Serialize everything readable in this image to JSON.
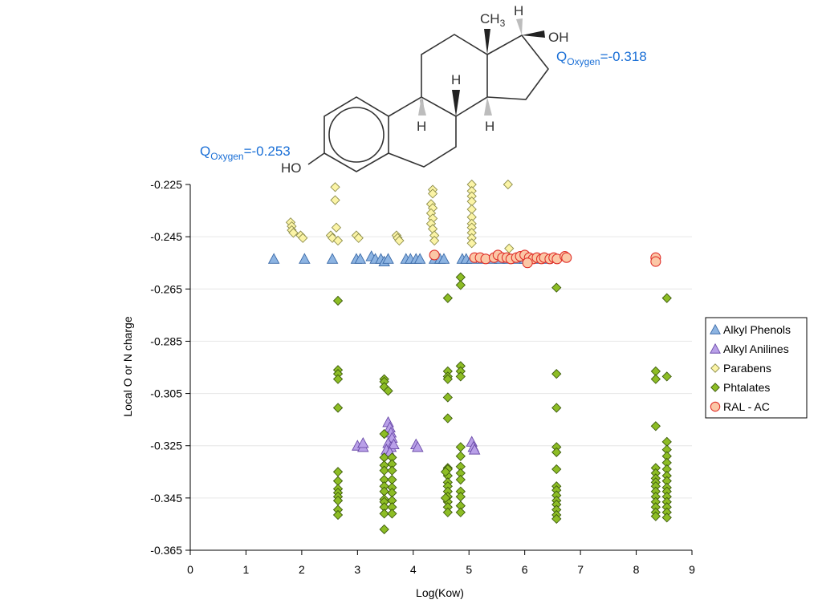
{
  "chart_data": {
    "type": "scatter",
    "title": "",
    "xlabel": "Log(Kow)",
    "ylabel": "Local O or N charge",
    "xlim": [
      0,
      9
    ],
    "ylim": [
      -0.365,
      -0.225
    ],
    "xticks": [
      "0",
      "1",
      "2",
      "3",
      "4",
      "5",
      "6",
      "7",
      "8",
      "9"
    ],
    "yticks": [
      "-0.225",
      "-0.245",
      "-0.265",
      "-0.285",
      "-0.305",
      "-0.325",
      "-0.345",
      "-0.365"
    ],
    "grid": "horizontal",
    "legend_position": "right",
    "series": [
      {
        "name": "Alkyl Phenols",
        "marker": "triangle",
        "color": "#8db4e2",
        "points": [
          [
            1.5,
            -0.2535
          ],
          [
            2.05,
            -0.2535
          ],
          [
            2.55,
            -0.2535
          ],
          [
            2.98,
            -0.2535
          ],
          [
            3.05,
            -0.2535
          ],
          [
            3.25,
            -0.2525
          ],
          [
            3.32,
            -0.2535
          ],
          [
            3.42,
            -0.2535
          ],
          [
            3.48,
            -0.2545
          ],
          [
            3.55,
            -0.2535
          ],
          [
            3.87,
            -0.2535
          ],
          [
            3.95,
            -0.2535
          ],
          [
            4.05,
            -0.2535
          ],
          [
            4.12,
            -0.2535
          ],
          [
            4.38,
            -0.2535
          ],
          [
            4.48,
            -0.2535
          ],
          [
            4.55,
            -0.2535
          ],
          [
            4.88,
            -0.2535
          ],
          [
            4.95,
            -0.2535
          ],
          [
            5.05,
            -0.2535
          ],
          [
            5.25,
            -0.2535
          ],
          [
            5.4,
            -0.2535
          ],
          [
            5.55,
            -0.2535
          ],
          [
            5.7,
            -0.2535
          ],
          [
            5.88,
            -0.2535
          ],
          [
            6.0,
            -0.2535
          ],
          [
            6.2,
            -0.2535
          ],
          [
            6.4,
            -0.2535
          ]
        ]
      },
      {
        "name": "Alkyl Anilines",
        "marker": "triangle",
        "color": "#b9a0e8",
        "points": [
          [
            3.0,
            -0.325
          ],
          [
            3.1,
            -0.3255
          ],
          [
            3.1,
            -0.324
          ],
          [
            3.55,
            -0.316
          ],
          [
            3.58,
            -0.318
          ],
          [
            3.6,
            -0.32
          ],
          [
            3.62,
            -0.322
          ],
          [
            3.55,
            -0.324
          ],
          [
            3.6,
            -0.3255
          ],
          [
            3.52,
            -0.3265
          ],
          [
            3.65,
            -0.3245
          ],
          [
            3.58,
            -0.3275
          ],
          [
            4.05,
            -0.3245
          ],
          [
            4.08,
            -0.3255
          ],
          [
            5.05,
            -0.3235
          ],
          [
            5.08,
            -0.3255
          ],
          [
            5.1,
            -0.3265
          ]
        ]
      },
      {
        "name": "Parabens",
        "marker": "diamond",
        "color": "#fbf4a6",
        "points": [
          [
            1.8,
            -0.2395
          ],
          [
            1.82,
            -0.241
          ],
          [
            1.82,
            -0.2425
          ],
          [
            1.85,
            -0.2435
          ],
          [
            1.98,
            -0.2445
          ],
          [
            2.02,
            -0.2455
          ],
          [
            2.6,
            -0.226
          ],
          [
            2.6,
            -0.231
          ],
          [
            2.62,
            -0.2415
          ],
          [
            2.52,
            -0.2445
          ],
          [
            2.55,
            -0.2455
          ],
          [
            2.65,
            -0.2465
          ],
          [
            2.98,
            -0.2445
          ],
          [
            3.02,
            -0.2455
          ],
          [
            3.7,
            -0.2445
          ],
          [
            3.72,
            -0.2455
          ],
          [
            3.75,
            -0.2465
          ],
          [
            4.35,
            -0.227
          ],
          [
            4.35,
            -0.2285
          ],
          [
            4.32,
            -0.2325
          ],
          [
            4.35,
            -0.234
          ],
          [
            4.32,
            -0.236
          ],
          [
            4.35,
            -0.238
          ],
          [
            4.32,
            -0.24
          ],
          [
            4.35,
            -0.242
          ],
          [
            4.38,
            -0.2445
          ],
          [
            4.38,
            -0.2465
          ],
          [
            5.05,
            -0.225
          ],
          [
            5.05,
            -0.2275
          ],
          [
            5.05,
            -0.2295
          ],
          [
            5.05,
            -0.2315
          ],
          [
            5.05,
            -0.2345
          ],
          [
            5.05,
            -0.2375
          ],
          [
            5.05,
            -0.24
          ],
          [
            5.05,
            -0.2415
          ],
          [
            5.05,
            -0.2435
          ],
          [
            5.05,
            -0.2455
          ],
          [
            5.05,
            -0.2475
          ],
          [
            5.7,
            -0.225
          ],
          [
            5.72,
            -0.2495
          ]
        ]
      },
      {
        "name": "Phtalates",
        "marker": "diamond",
        "color": "#8dbd25",
        "points": [
          [
            2.65,
            -0.2695
          ],
          [
            2.65,
            -0.296
          ],
          [
            2.65,
            -0.2975
          ],
          [
            2.65,
            -0.2995
          ],
          [
            2.65,
            -0.3105
          ],
          [
            2.65,
            -0.335
          ],
          [
            2.65,
            -0.3385
          ],
          [
            2.65,
            -0.3415
          ],
          [
            2.65,
            -0.343
          ],
          [
            2.65,
            -0.3445
          ],
          [
            2.65,
            -0.346
          ],
          [
            2.65,
            -0.3495
          ],
          [
            2.65,
            -0.3515
          ],
          [
            3.48,
            -0.2995
          ],
          [
            3.48,
            -0.3005
          ],
          [
            3.48,
            -0.3025
          ],
          [
            3.55,
            -0.304
          ],
          [
            3.48,
            -0.3205
          ],
          [
            3.48,
            -0.3295
          ],
          [
            3.48,
            -0.3325
          ],
          [
            3.48,
            -0.3345
          ],
          [
            3.48,
            -0.338
          ],
          [
            3.48,
            -0.3405
          ],
          [
            3.48,
            -0.3425
          ],
          [
            3.48,
            -0.3455
          ],
          [
            3.48,
            -0.3465
          ],
          [
            3.48,
            -0.3485
          ],
          [
            3.48,
            -0.351
          ],
          [
            3.48,
            -0.357
          ],
          [
            3.62,
            -0.3295
          ],
          [
            3.62,
            -0.332
          ],
          [
            3.62,
            -0.3345
          ],
          [
            3.62,
            -0.338
          ],
          [
            3.62,
            -0.341
          ],
          [
            3.62,
            -0.343
          ],
          [
            3.62,
            -0.346
          ],
          [
            3.62,
            -0.3485
          ],
          [
            3.62,
            -0.351
          ],
          [
            4.62,
            -0.2685
          ],
          [
            4.62,
            -0.2965
          ],
          [
            4.62,
            -0.2985
          ],
          [
            4.62,
            -0.2995
          ],
          [
            4.62,
            -0.3065
          ],
          [
            4.62,
            -0.3145
          ],
          [
            4.62,
            -0.3335
          ],
          [
            4.62,
            -0.334
          ],
          [
            4.62,
            -0.3365
          ],
          [
            4.62,
            -0.339
          ],
          [
            4.62,
            -0.3405
          ],
          [
            4.62,
            -0.3425
          ],
          [
            4.62,
            -0.3445
          ],
          [
            4.62,
            -0.3465
          ],
          [
            4.62,
            -0.3485
          ],
          [
            4.62,
            -0.3505
          ],
          [
            4.58,
            -0.335
          ],
          [
            4.58,
            -0.345
          ],
          [
            4.85,
            -0.2605
          ],
          [
            4.85,
            -0.2635
          ],
          [
            4.85,
            -0.2945
          ],
          [
            4.85,
            -0.2965
          ],
          [
            4.85,
            -0.2985
          ],
          [
            4.85,
            -0.3255
          ],
          [
            4.85,
            -0.329
          ],
          [
            4.85,
            -0.333
          ],
          [
            4.85,
            -0.3355
          ],
          [
            4.85,
            -0.338
          ],
          [
            4.85,
            -0.3425
          ],
          [
            4.85,
            -0.3445
          ],
          [
            4.85,
            -0.348
          ],
          [
            4.85,
            -0.3505
          ],
          [
            6.57,
            -0.2645
          ],
          [
            6.57,
            -0.2975
          ],
          [
            6.57,
            -0.3105
          ],
          [
            6.57,
            -0.3255
          ],
          [
            6.57,
            -0.3275
          ],
          [
            6.57,
            -0.334
          ],
          [
            6.57,
            -0.3405
          ],
          [
            6.57,
            -0.342
          ],
          [
            6.57,
            -0.344
          ],
          [
            6.57,
            -0.346
          ],
          [
            6.57,
            -0.3475
          ],
          [
            6.57,
            -0.3495
          ],
          [
            6.57,
            -0.3515
          ],
          [
            6.57,
            -0.353
          ],
          [
            8.35,
            -0.2965
          ],
          [
            8.35,
            -0.2995
          ],
          [
            8.35,
            -0.3175
          ],
          [
            8.35,
            -0.3335
          ],
          [
            8.35,
            -0.3355
          ],
          [
            8.35,
            -0.3375
          ],
          [
            8.35,
            -0.339
          ],
          [
            8.35,
            -0.3405
          ],
          [
            8.35,
            -0.3425
          ],
          [
            8.35,
            -0.3445
          ],
          [
            8.35,
            -0.3465
          ],
          [
            8.35,
            -0.3485
          ],
          [
            8.35,
            -0.3505
          ],
          [
            8.35,
            -0.352
          ],
          [
            8.55,
            -0.2685
          ],
          [
            8.55,
            -0.2985
          ],
          [
            8.55,
            -0.3235
          ],
          [
            8.55,
            -0.3265
          ],
          [
            8.55,
            -0.329
          ],
          [
            8.55,
            -0.3315
          ],
          [
            8.55,
            -0.334
          ],
          [
            8.55,
            -0.3365
          ],
          [
            8.55,
            -0.3385
          ],
          [
            8.55,
            -0.341
          ],
          [
            8.55,
            -0.3425
          ],
          [
            8.55,
            -0.3445
          ],
          [
            8.55,
            -0.3465
          ],
          [
            8.55,
            -0.3485
          ],
          [
            8.55,
            -0.3505
          ],
          [
            8.55,
            -0.3525
          ]
        ]
      },
      {
        "name": "RAL - AC",
        "marker": "circle",
        "color": "#fbc7a6",
        "points": [
          [
            4.38,
            -0.252
          ],
          [
            5.1,
            -0.253
          ],
          [
            5.2,
            -0.253
          ],
          [
            5.3,
            -0.2535
          ],
          [
            5.45,
            -0.253
          ],
          [
            5.52,
            -0.252
          ],
          [
            5.6,
            -0.253
          ],
          [
            5.68,
            -0.253
          ],
          [
            5.75,
            -0.2535
          ],
          [
            5.85,
            -0.253
          ],
          [
            5.92,
            -0.2525
          ],
          [
            6.0,
            -0.252
          ],
          [
            6.08,
            -0.253
          ],
          [
            6.15,
            -0.2535
          ],
          [
            6.22,
            -0.253
          ],
          [
            6.3,
            -0.2535
          ],
          [
            6.35,
            -0.253
          ],
          [
            6.45,
            -0.2535
          ],
          [
            6.52,
            -0.253
          ],
          [
            6.58,
            -0.2535
          ],
          [
            6.72,
            -0.2525
          ],
          [
            6.75,
            -0.253
          ],
          [
            8.35,
            -0.253
          ],
          [
            8.35,
            -0.2545
          ],
          [
            6.05,
            -0.255
          ]
        ]
      }
    ],
    "annotations": [
      "QOxygen=-0.253",
      "QOxygen=-0.318",
      "HO",
      "OH",
      "CH3",
      "H"
    ]
  },
  "molecule": {
    "methyl_main": "CH",
    "methyl_sub": "3",
    "hydroxyl_right": "OH",
    "hydroxyl_left": "HO",
    "hydrogen": "H"
  },
  "charges": {
    "right": {
      "q": "Q",
      "sub": "Oxygen",
      "value": "=-0.318"
    },
    "left": {
      "q": "Q",
      "sub": "Oxygen",
      "value": "=-0.253"
    }
  },
  "colors": {
    "edge_triangle_blue": "#3a6aa8",
    "edge_triangle_purple": "#6a4aa8",
    "edge_diamond_yellow": "#8c8c4a",
    "edge_diamond_green": "#3c5a0c",
    "edge_circle": "#e0302a",
    "charge_text": "#1a6fd6"
  }
}
